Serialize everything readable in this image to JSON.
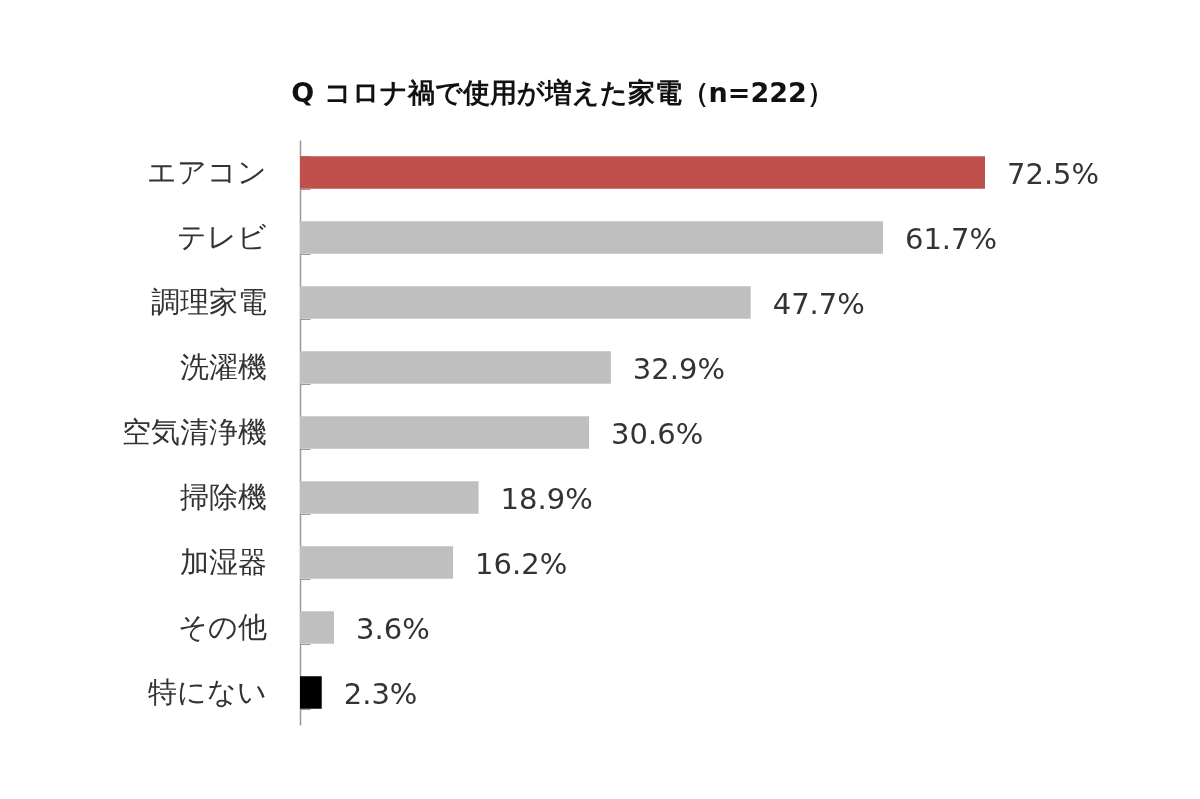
{
  "chart_data": {
    "type": "bar",
    "orientation": "horizontal",
    "title": "Q コロナ禍で使用が増えた家電（n=222）",
    "categories": [
      "エアコン",
      "テレビ",
      "調理家電",
      "洗濯機",
      "空気清浄機",
      "掃除機",
      "加湿器",
      "その他",
      "特にない"
    ],
    "values": [
      72.5,
      61.7,
      47.7,
      32.9,
      30.6,
      18.9,
      16.2,
      3.6,
      2.3
    ],
    "colors": [
      "#c0504d",
      "#bfbfbf",
      "#bfbfbf",
      "#bfbfbf",
      "#bfbfbf",
      "#bfbfbf",
      "#bfbfbf",
      "#bfbfbf",
      "#000000"
    ],
    "value_labels": [
      "72.5%",
      "61.7%",
      "47.7%",
      "32.9%",
      "30.6%",
      "18.9%",
      "16.2%",
      "3.6%",
      "2.3%"
    ]
  }
}
